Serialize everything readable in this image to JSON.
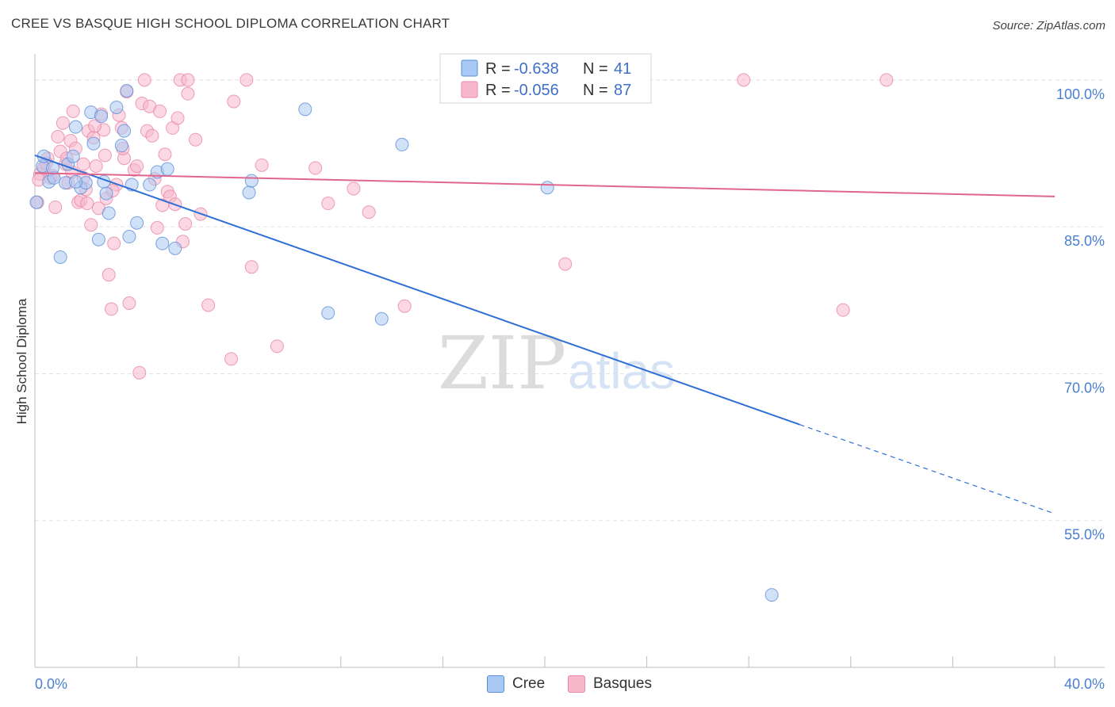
{
  "chart_data": {
    "type": "scatter",
    "title": "CREE VS BASQUE HIGH SCHOOL DIPLOMA CORRELATION CHART",
    "source": "Source: ZipAtlas.com",
    "ylabel": "High School Diploma",
    "xlabel": "",
    "xlim": [
      0,
      40
    ],
    "ylim": [
      40,
      102.5
    ],
    "y_ticks": [
      {
        "value": 100,
        "label": "100.0%"
      },
      {
        "value": 85,
        "label": "85.0%"
      },
      {
        "value": 70,
        "label": "70.0%"
      },
      {
        "value": 55,
        "label": "55.0%"
      }
    ],
    "x_tick_labels": {
      "left": "0.0%",
      "right": "40.0%"
    },
    "watermark": {
      "zip": "ZIP",
      "atlas": "atlas"
    },
    "colors": {
      "cree_fill": "#a9c8f3",
      "cree_stroke": "#5b8fd9",
      "cree_line": "#2f6fd6",
      "basque_fill": "#f7b8cc",
      "basque_stroke": "#e887a6",
      "basque_line": "#e0658f",
      "grid": "#e3e3e3",
      "axis_label": "#4a7fd0"
    },
    "legend": {
      "r_label": "R =",
      "n_label": "N =",
      "series": [
        {
          "name": "Cree",
          "r": "-0.638",
          "n": "41"
        },
        {
          "name": "Basques",
          "r": "-0.056",
          "n": "87"
        }
      ]
    },
    "series": [
      {
        "name": "Cree",
        "trend": {
          "x0": 0,
          "y0": 92.3,
          "x1": 30,
          "y1": 64.8,
          "dash_to_x": 40,
          "dash_to_y": 55.7
        },
        "points": [
          [
            0.06,
            87.5
          ],
          [
            0.3,
            91.2
          ],
          [
            0.35,
            92.2
          ],
          [
            0.55,
            89.6
          ],
          [
            0.75,
            90.0
          ],
          [
            1.0,
            81.9
          ],
          [
            1.3,
            91.4
          ],
          [
            1.5,
            92.2
          ],
          [
            1.2,
            89.5
          ],
          [
            1.6,
            95.2
          ],
          [
            1.8,
            89.0
          ],
          [
            2.0,
            89.5
          ],
          [
            2.2,
            96.7
          ],
          [
            2.3,
            93.5
          ],
          [
            2.5,
            83.7
          ],
          [
            2.6,
            96.3
          ],
          [
            2.7,
            89.6
          ],
          [
            2.8,
            88.4
          ],
          [
            2.9,
            86.4
          ],
          [
            3.2,
            97.2
          ],
          [
            3.4,
            93.3
          ],
          [
            3.5,
            94.8
          ],
          [
            3.6,
            98.9
          ],
          [
            3.7,
            84.0
          ],
          [
            3.8,
            89.3
          ],
          [
            4.0,
            85.4
          ],
          [
            4.5,
            89.3
          ],
          [
            4.8,
            90.6
          ],
          [
            5.0,
            83.3
          ],
          [
            5.2,
            90.9
          ],
          [
            5.5,
            82.8
          ],
          [
            8.4,
            88.5
          ],
          [
            8.5,
            89.7
          ],
          [
            10.6,
            97.0
          ],
          [
            11.5,
            76.2
          ],
          [
            13.6,
            75.6
          ],
          [
            14.4,
            93.4
          ],
          [
            20.1,
            89.0
          ],
          [
            28.9,
            47.4
          ],
          [
            0.7,
            91.0
          ],
          [
            1.6,
            89.6
          ]
        ]
      },
      {
        "name": "Basques",
        "trend": {
          "x0": 0,
          "y0": 90.5,
          "x1": 40,
          "y1": 88.1
        },
        "points": [
          [
            0.1,
            87.5
          ],
          [
            0.2,
            90.4
          ],
          [
            0.35,
            91.0
          ],
          [
            0.5,
            92.0
          ],
          [
            0.6,
            90.0
          ],
          [
            0.8,
            87.0
          ],
          [
            0.9,
            94.2
          ],
          [
            1.0,
            92.7
          ],
          [
            1.1,
            95.6
          ],
          [
            1.2,
            91.4
          ],
          [
            1.3,
            89.5
          ],
          [
            1.4,
            93.8
          ],
          [
            1.5,
            96.8
          ],
          [
            1.6,
            93.0
          ],
          [
            1.7,
            87.5
          ],
          [
            1.8,
            87.7
          ],
          [
            1.9,
            90.0
          ],
          [
            2.0,
            88.8
          ],
          [
            2.1,
            94.8
          ],
          [
            2.2,
            85.2
          ],
          [
            2.3,
            94.1
          ],
          [
            2.4,
            91.2
          ],
          [
            2.5,
            86.9
          ],
          [
            2.6,
            96.5
          ],
          [
            2.7,
            94.9
          ],
          [
            2.8,
            87.9
          ],
          [
            2.9,
            80.1
          ],
          [
            3.0,
            76.6
          ],
          [
            3.1,
            83.3
          ],
          [
            3.2,
            89.3
          ],
          [
            3.3,
            96.4
          ],
          [
            3.4,
            95.1
          ],
          [
            3.5,
            92.0
          ],
          [
            3.6,
            98.8
          ],
          [
            3.7,
            77.2
          ],
          [
            3.9,
            90.8
          ],
          [
            4.0,
            91.2
          ],
          [
            4.1,
            70.1
          ],
          [
            4.2,
            97.6
          ],
          [
            4.3,
            100.0
          ],
          [
            4.4,
            94.8
          ],
          [
            4.5,
            97.3
          ],
          [
            4.6,
            94.3
          ],
          [
            4.7,
            89.9
          ],
          [
            4.8,
            84.9
          ],
          [
            4.9,
            96.8
          ],
          [
            5.0,
            87.2
          ],
          [
            5.1,
            92.4
          ],
          [
            5.2,
            88.6
          ],
          [
            5.3,
            88.1
          ],
          [
            5.4,
            95.1
          ],
          [
            5.5,
            87.3
          ],
          [
            5.6,
            96.1
          ],
          [
            5.7,
            100.0
          ],
          [
            5.8,
            83.5
          ],
          [
            5.9,
            85.3
          ],
          [
            6.0,
            100.0
          ],
          [
            6.0,
            98.6
          ],
          [
            6.3,
            93.9
          ],
          [
            6.5,
            86.3
          ],
          [
            6.8,
            77.0
          ],
          [
            7.7,
            71.5
          ],
          [
            7.8,
            97.8
          ],
          [
            8.3,
            100.0
          ],
          [
            8.5,
            80.9
          ],
          [
            8.9,
            91.3
          ],
          [
            9.5,
            72.8
          ],
          [
            11.0,
            91.0
          ],
          [
            11.5,
            87.4
          ],
          [
            12.5,
            88.9
          ],
          [
            13.1,
            86.5
          ],
          [
            14.5,
            76.9
          ],
          [
            20.8,
            81.2
          ],
          [
            27.8,
            100.0
          ],
          [
            31.7,
            76.5
          ],
          [
            33.4,
            100.0
          ],
          [
            0.15,
            89.8
          ],
          [
            0.45,
            91.5
          ],
          [
            0.7,
            90.2
          ],
          [
            1.25,
            92.0
          ],
          [
            1.45,
            90.6
          ],
          [
            1.9,
            91.4
          ],
          [
            2.05,
            87.4
          ],
          [
            2.35,
            95.3
          ],
          [
            2.75,
            92.3
          ],
          [
            3.05,
            88.7
          ],
          [
            3.45,
            93.0
          ]
        ]
      }
    ]
  }
}
